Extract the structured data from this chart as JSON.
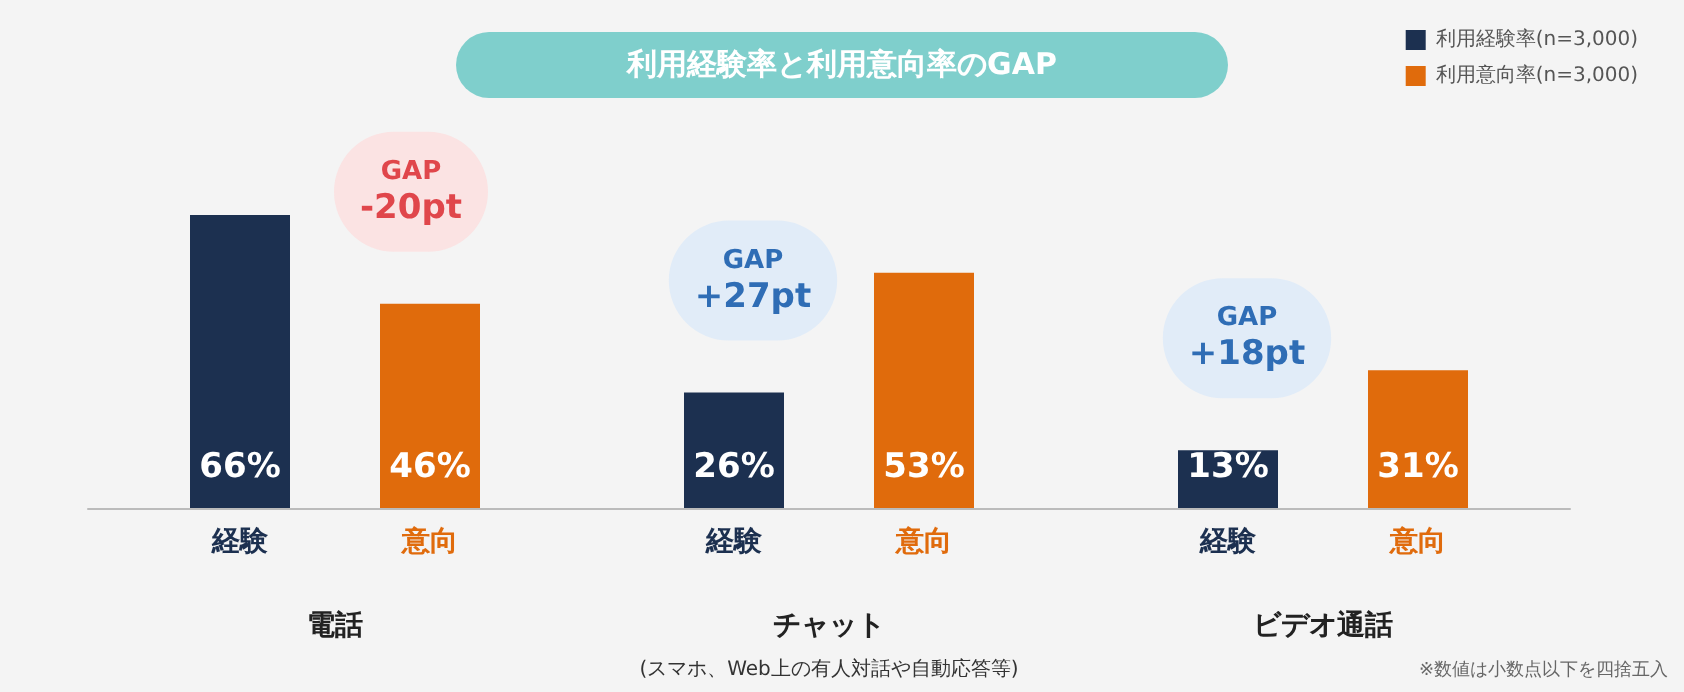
{
  "chart_data": {
    "type": "bar",
    "title": "利用経験率と利用意向率のGAP",
    "categories": [
      "電話",
      "チャット\n(スマホ、Web上の有人対話や自動応答等)",
      "ビデオ通話"
    ],
    "series": [
      {
        "name": "利用経験率(n=3,000)",
        "color": "#1c3050",
        "values": [
          66,
          26,
          13
        ],
        "value_labels": [
          "66%",
          "26%",
          "13%"
        ]
      },
      {
        "name": "利用意向率(n=3,000)",
        "color": "#e06b0c",
        "values": [
          46,
          53,
          31
        ],
        "value_labels": [
          "46%",
          "53%",
          "31%"
        ]
      }
    ],
    "ylim": [
      0,
      100
    ],
    "legend": "top right",
    "grid": false,
    "annotations": [
      "経験",
      "意向",
      "経験",
      "意向",
      "経験",
      "意向",
      "GAP\n-20pt",
      "GAP\n+27pt",
      "GAP\n+18pt",
      "※数値は小数点以下を四捨五入"
    ]
  }
}
